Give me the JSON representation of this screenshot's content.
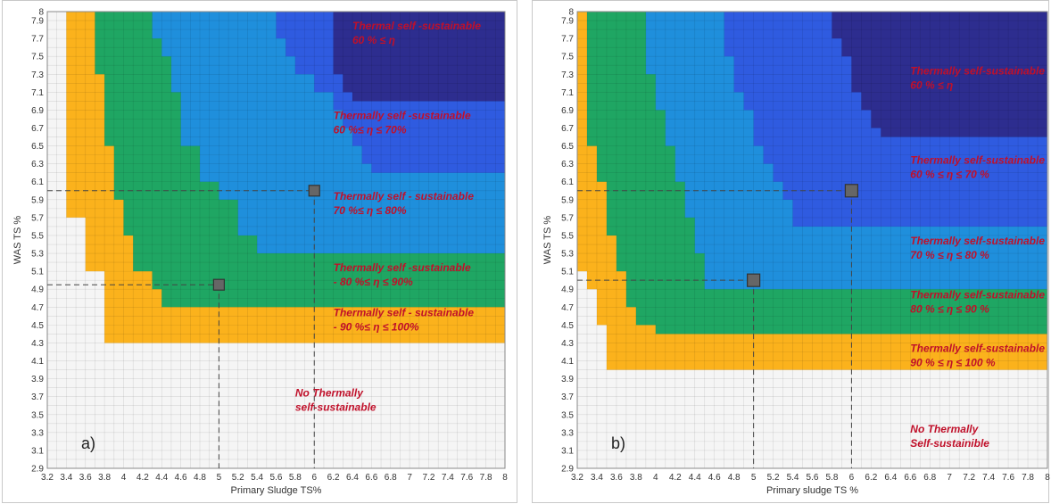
{
  "chart_data": [
    {
      "type": "heatmap",
      "panel_label": "a)",
      "xlabel": "Primary Sludge TS%",
      "ylabel": "WAS TS %",
      "xlim": [
        3.2,
        8
      ],
      "ylim": [
        2.9,
        8
      ],
      "x_ticks": [
        "3.2",
        "3.4",
        "3.6",
        "3.8",
        "4",
        "4.2",
        "4.4",
        "4.6",
        "4.8",
        "5",
        "5.2",
        "5.4",
        "5.6",
        "5.8",
        "6",
        "6.2",
        "6.4",
        "6.6",
        "6.8",
        "7",
        "7.2",
        "7.4",
        "7.6",
        "7.8",
        "8"
      ],
      "y_ticks": [
        "2.9",
        "3.1",
        "3.3",
        "3.5",
        "3.7",
        "3.9",
        "4.1",
        "4.3",
        "4.5",
        "4.7",
        "4.9",
        "5.1",
        "5.3",
        "5.5",
        "5.7",
        "5.9",
        "6.1",
        "6.3",
        "6.5",
        "6.7",
        "6.9",
        "7.1",
        "7.3",
        "7.5",
        "7.7",
        "7.9",
        "8"
      ],
      "region_colors": [
        "#f5f5f5",
        "#fbb21c",
        "#1fa663",
        "#1f8fdc",
        "#2f5be0",
        "#2d2d8f"
      ],
      "regions": [
        {
          "label_lines": [
            "No Thermally",
            "self-sustainable"
          ],
          "color": "#f5f5f5",
          "boundary": [
            [
              3.2,
              3.6
            ],
            [
              4,
              3.6
            ],
            [
              8,
              3.6
            ]
          ],
          "label_at": [
            5.8,
            3.7
          ]
        },
        {
          "label_lines": [
            "Thermally self - sustainable",
            "- 90 %≤ η ≤ 100%"
          ],
          "color": "#fbb21c",
          "boundary": [
            [
              3.2,
              8
            ],
            [
              3.4,
              7.9
            ],
            [
              3.4,
              6.9
            ],
            [
              3.4,
              6.3
            ],
            [
              3.4,
              5.7
            ],
            [
              3.6,
              5.5
            ],
            [
              3.6,
              5.1
            ],
            [
              3.8,
              4.9
            ],
            [
              3.8,
              4.5
            ],
            [
              3.8,
              4.3
            ],
            [
              8,
              4.3
            ]
          ],
          "label_at": [
            6.2,
            4.6
          ]
        },
        {
          "label_lines": [
            "Thermally self -sustainable",
            "- 80 %≤ η ≤ 90%"
          ],
          "color": "#1fa663",
          "boundary": [
            [
              3.6,
              8
            ],
            [
              3.7,
              7.9
            ],
            [
              3.7,
              7.3
            ],
            [
              3.8,
              6.9
            ],
            [
              3.8,
              6.5
            ],
            [
              3.9,
              6.1
            ],
            [
              3.9,
              5.9
            ],
            [
              4,
              5.5
            ],
            [
              4.1,
              5.1
            ],
            [
              4.3,
              4.9
            ],
            [
              4.4,
              4.7
            ],
            [
              8,
              4.7
            ]
          ],
          "label_at": [
            6.2,
            5.1
          ]
        },
        {
          "label_lines": [
            "Thermally self - sustainable",
            "70 %≤ η ≤ 80%"
          ],
          "color": "#1f8fdc",
          "boundary": [
            [
              4.2,
              8
            ],
            [
              4.3,
              7.7
            ],
            [
              4.4,
              7.5
            ],
            [
              4.5,
              7.1
            ],
            [
              4.6,
              6.5
            ],
            [
              4.8,
              6.1
            ],
            [
              5.0,
              5.9
            ],
            [
              5.2,
              5.5
            ],
            [
              5.4,
              5.3
            ],
            [
              8,
              5.3
            ]
          ],
          "label_at": [
            6.2,
            5.9
          ]
        },
        {
          "label_lines": [
            "Thermally self -sustainable",
            "60 %≤ η ≤ 70%"
          ],
          "color": "#2f5be0",
          "boundary": [
            [
              5.5,
              8
            ],
            [
              5.6,
              7.7
            ],
            [
              5.7,
              7.5
            ],
            [
              5.8,
              7.3
            ],
            [
              6.0,
              7.1
            ],
            [
              6.2,
              6.9
            ],
            [
              6.3,
              6.7
            ],
            [
              6.4,
              6.5
            ],
            [
              6.5,
              6.3
            ],
            [
              6.6,
              6.2
            ],
            [
              8,
              6.2
            ]
          ],
          "label_at": [
            6.2,
            6.8
          ]
        },
        {
          "label_lines": [
            "Thermal self -sustainable",
            "60 % ≤ η"
          ],
          "color": "#2d2d8f",
          "boundary": [
            [
              6.1,
              8
            ],
            [
              6.2,
              7.3
            ],
            [
              6.3,
              7.1
            ],
            [
              6.4,
              7.0
            ],
            [
              8,
              7.0
            ]
          ],
          "label_at": [
            6.4,
            7.8
          ]
        }
      ],
      "points": [
        {
          "x": 5,
          "y": 4.95
        },
        {
          "x": 6,
          "y": 6.0
        }
      ]
    },
    {
      "type": "heatmap",
      "panel_label": "b)",
      "xlabel": "Primary sludge TS %",
      "ylabel": "WAS TS %",
      "xlim": [
        3.2,
        8
      ],
      "ylim": [
        2.9,
        8
      ],
      "x_ticks": [
        "3.2",
        "3.4",
        "3.6",
        "3.8",
        "4",
        "4.2",
        "4.4",
        "4.6",
        "4.8",
        "5",
        "5.2",
        "5.4",
        "5.6",
        "5.8",
        "6",
        "6.2",
        "6.4",
        "6.6",
        "6.8",
        "7",
        "7.2",
        "7.4",
        "7.6",
        "7.8",
        "8"
      ],
      "y_ticks": [
        "2.9",
        "3.1",
        "3.3",
        "3.5",
        "3.7",
        "3.9",
        "4.1",
        "4.3",
        "4.5",
        "4.7",
        "4.9",
        "5.1",
        "5.3",
        "5.5",
        "5.7",
        "5.9",
        "6.1",
        "6.3",
        "6.5",
        "6.7",
        "6.9",
        "7.1",
        "7.3",
        "7.5",
        "7.7",
        "7.9",
        "8"
      ],
      "region_colors": [
        "#f5f5f5",
        "#fbb21c",
        "#1fa663",
        "#1f8fdc",
        "#2f5be0",
        "#2d2d8f"
      ],
      "regions": [
        {
          "label_lines": [
            "No Thermally",
            "Self-sustainible"
          ],
          "color": "#f5f5f5",
          "boundary": [
            [
              3.2,
              3.6
            ],
            [
              8,
              3.6
            ]
          ],
          "label_at": [
            6.6,
            3.3
          ]
        },
        {
          "label_lines": [
            "Thermally self-sustainable",
            "90 % ≤ η ≤ 100 %"
          ],
          "color": "#fbb21c",
          "boundary": [
            [
              3.2,
              8
            ],
            [
              3.2,
              5.1
            ],
            [
              3.3,
              4.9
            ],
            [
              3.4,
              4.5
            ],
            [
              3.5,
              4.0
            ],
            [
              8,
              4.0
            ]
          ],
          "label_at": [
            6.6,
            4.2
          ]
        },
        {
          "label_lines": [
            "Thermally self-sustainable",
            "80 % ≤ η ≤ 90 %"
          ],
          "color": "#1fa663",
          "boundary": [
            [
              3.3,
              8
            ],
            [
              3.3,
              6.5
            ],
            [
              3.4,
              6.1
            ],
            [
              3.5,
              5.7
            ],
            [
              3.5,
              5.5
            ],
            [
              3.6,
              5.1
            ],
            [
              3.7,
              4.7
            ],
            [
              3.8,
              4.5
            ],
            [
              4.0,
              4.4
            ],
            [
              8,
              4.4
            ]
          ],
          "label_at": [
            6.6,
            4.8
          ]
        },
        {
          "label_lines": [
            "Thermally self-sustainable",
            "70 % ≤ η ≤ 80 %"
          ],
          "color": "#1f8fdc",
          "boundary": [
            [
              3.9,
              8
            ],
            [
              3.9,
              7.3
            ],
            [
              4.0,
              6.9
            ],
            [
              4.1,
              6.5
            ],
            [
              4.2,
              6.1
            ],
            [
              4.3,
              5.7
            ],
            [
              4.4,
              5.3
            ],
            [
              4.5,
              4.9
            ],
            [
              8,
              4.9
            ]
          ],
          "label_at": [
            6.6,
            5.4
          ]
        },
        {
          "label_lines": [
            "Thermally self-sustainable",
            "60 % ≤ η ≤ 70 %"
          ],
          "color": "#2f5be0",
          "boundary": [
            [
              4.6,
              8
            ],
            [
              4.7,
              7.5
            ],
            [
              4.8,
              7.1
            ],
            [
              4.9,
              6.9
            ],
            [
              5.0,
              6.5
            ],
            [
              5.1,
              6.3
            ],
            [
              5.2,
              6.1
            ],
            [
              5.3,
              5.9
            ],
            [
              5.4,
              5.6
            ],
            [
              8,
              5.6
            ]
          ],
          "label_at": [
            6.6,
            6.3
          ]
        },
        {
          "label_lines": [
            "Thermally self-sustainable",
            "60 % ≤ η"
          ],
          "color": "#2d2d8f",
          "boundary": [
            [
              5.7,
              8
            ],
            [
              5.8,
              7.7
            ],
            [
              5.9,
              7.5
            ],
            [
              6.0,
              7.3
            ],
            [
              6.0,
              7.1
            ],
            [
              6.1,
              6.9
            ],
            [
              6.2,
              6.7
            ],
            [
              6.3,
              6.6
            ],
            [
              8,
              6.6
            ]
          ],
          "label_at": [
            6.6,
            7.3
          ]
        }
      ],
      "points": [
        {
          "x": 5,
          "y": 5.0
        },
        {
          "x": 6,
          "y": 6.0
        }
      ]
    }
  ]
}
